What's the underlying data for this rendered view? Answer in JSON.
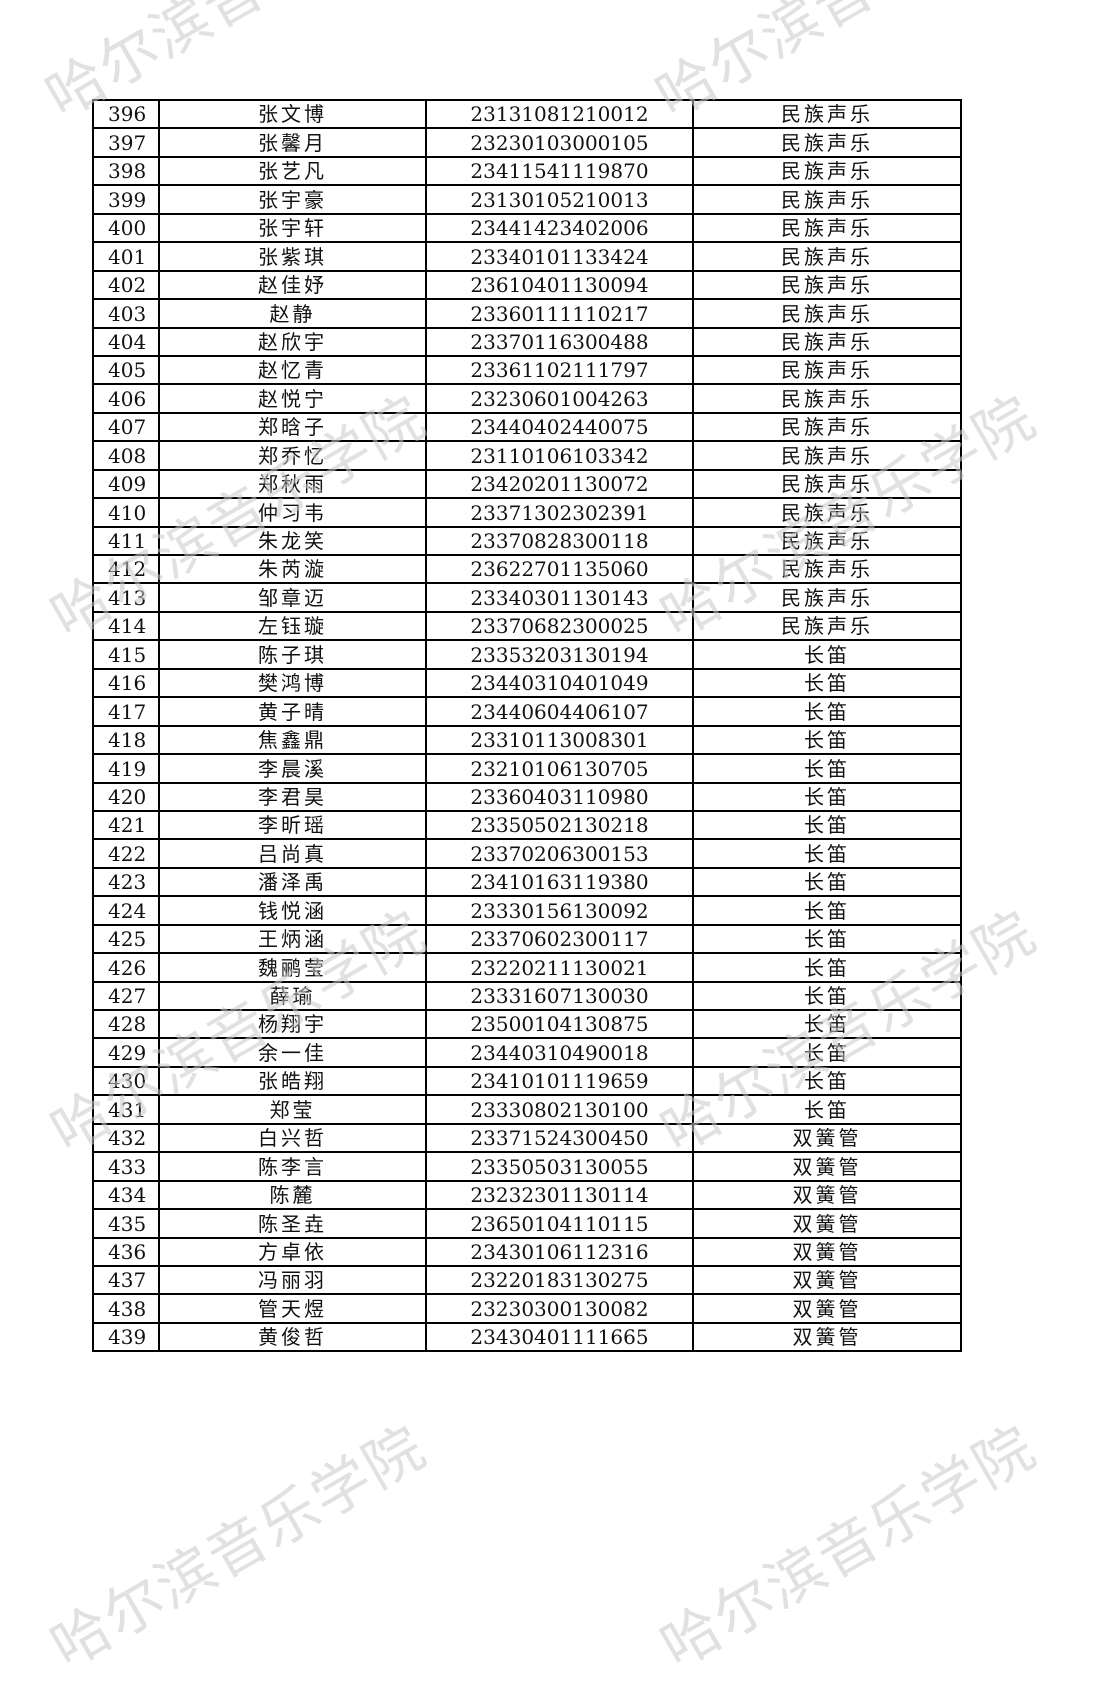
{
  "watermark": "哈尔滨音乐学院",
  "rows": [
    [
      "396",
      "张文博",
      "23131081210012",
      "民族声乐"
    ],
    [
      "397",
      "张馨月",
      "23230103000105",
      "民族声乐"
    ],
    [
      "398",
      "张艺凡",
      "23411541119870",
      "民族声乐"
    ],
    [
      "399",
      "张宇豪",
      "23130105210013",
      "民族声乐"
    ],
    [
      "400",
      "张宇轩",
      "23441423402006",
      "民族声乐"
    ],
    [
      "401",
      "张紫琪",
      "23340101133424",
      "民族声乐"
    ],
    [
      "402",
      "赵佳妤",
      "23610401130094",
      "民族声乐"
    ],
    [
      "403",
      "赵静",
      "23360111110217",
      "民族声乐"
    ],
    [
      "404",
      "赵欣宇",
      "23370116300488",
      "民族声乐"
    ],
    [
      "405",
      "赵忆青",
      "23361102111797",
      "民族声乐"
    ],
    [
      "406",
      "赵悦宁",
      "23230601004263",
      "民族声乐"
    ],
    [
      "407",
      "郑晗子",
      "23440402440075",
      "民族声乐"
    ],
    [
      "408",
      "郑乔忆",
      "23110106103342",
      "民族声乐"
    ],
    [
      "409",
      "郑秋雨",
      "23420201130072",
      "民族声乐"
    ],
    [
      "410",
      "仲习韦",
      "23371302302391",
      "民族声乐"
    ],
    [
      "411",
      "朱龙笑",
      "23370828300118",
      "民族声乐"
    ],
    [
      "412",
      "朱芮漩",
      "23622701135060",
      "民族声乐"
    ],
    [
      "413",
      "邹章迈",
      "23340301130143",
      "民族声乐"
    ],
    [
      "414",
      "左钰璇",
      "23370682300025",
      "民族声乐"
    ],
    [
      "415",
      "陈子琪",
      "23353203130194",
      "长笛"
    ],
    [
      "416",
      "樊鸿博",
      "23440310401049",
      "长笛"
    ],
    [
      "417",
      "黄子晴",
      "23440604406107",
      "长笛"
    ],
    [
      "418",
      "焦鑫鼎",
      "23310113008301",
      "长笛"
    ],
    [
      "419",
      "李晨溪",
      "23210106130705",
      "长笛"
    ],
    [
      "420",
      "李君昊",
      "23360403110980",
      "长笛"
    ],
    [
      "421",
      "李昕瑶",
      "23350502130218",
      "长笛"
    ],
    [
      "422",
      "吕尚真",
      "23370206300153",
      "长笛"
    ],
    [
      "423",
      "潘泽禹",
      "23410163119380",
      "长笛"
    ],
    [
      "424",
      "钱悦涵",
      "23330156130092",
      "长笛"
    ],
    [
      "425",
      "王炳涵",
      "23370602300117",
      "长笛"
    ],
    [
      "426",
      "魏鹂莹",
      "23220211130021",
      "长笛"
    ],
    [
      "427",
      "薛瑜",
      "23331607130030",
      "长笛"
    ],
    [
      "428",
      "杨翔宇",
      "23500104130875",
      "长笛"
    ],
    [
      "429",
      "余一佳",
      "23440310490018",
      "长笛"
    ],
    [
      "430",
      "张皓翔",
      "23410101119659",
      "长笛"
    ],
    [
      "431",
      "郑莹",
      "23330802130100",
      "长笛"
    ],
    [
      "432",
      "白兴哲",
      "23371524300450",
      "双簧管"
    ],
    [
      "433",
      "陈李言",
      "23350503130055",
      "双簧管"
    ],
    [
      "434",
      "陈麓",
      "23232301130114",
      "双簧管"
    ],
    [
      "435",
      "陈圣垚",
      "23650104110115",
      "双簧管"
    ],
    [
      "436",
      "方卓依",
      "23430106112316",
      "双簧管"
    ],
    [
      "437",
      "冯丽羽",
      "23220183130275",
      "双簧管"
    ],
    [
      "438",
      "管天煜",
      "23230300130082",
      "双簧管"
    ],
    [
      "439",
      "黄俊哲",
      "23430401111665",
      "双簧管"
    ]
  ]
}
